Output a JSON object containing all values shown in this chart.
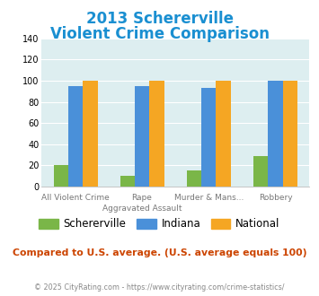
{
  "title_line1": "2013 Schererville",
  "title_line2": "Violent Crime Comparison",
  "cat_labels_line1": [
    "",
    "Rape",
    "Murder & Mans...",
    ""
  ],
  "cat_labels_line2": [
    "All Violent Crime",
    "Aggravated Assault",
    "",
    "Robbery"
  ],
  "schererville": [
    20,
    10,
    15,
    29
  ],
  "indiana": [
    95,
    95,
    93,
    100
  ],
  "national": [
    100,
    100,
    100,
    100
  ],
  "color_schererville": "#7ab648",
  "color_indiana": "#4a90d9",
  "color_national": "#f5a623",
  "ylim": [
    0,
    140
  ],
  "yticks": [
    0,
    20,
    40,
    60,
    80,
    100,
    120,
    140
  ],
  "background_color": "#ddeef0",
  "title_color": "#1a8fd1",
  "subtitle_note": "Compared to U.S. average. (U.S. average equals 100)",
  "subtitle_note_color": "#cc4400",
  "copyright_text": "© 2025 CityRating.com - https://www.cityrating.com/crime-statistics/",
  "copyright_color": "#888888",
  "legend_labels": [
    "Schererville",
    "Indiana",
    "National"
  ]
}
